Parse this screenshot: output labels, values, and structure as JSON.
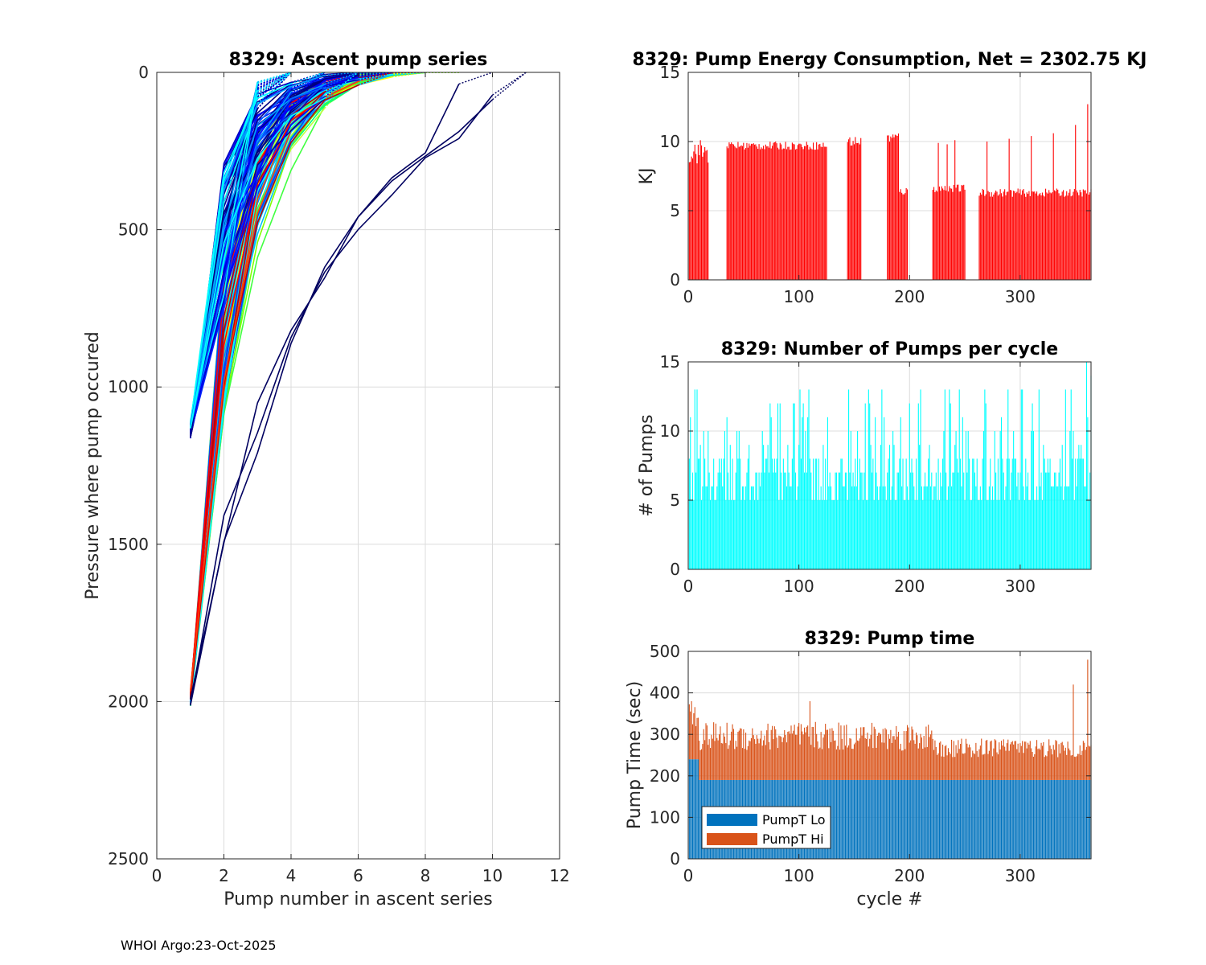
{
  "footer": "WHOI Argo:23-Oct-2025",
  "chart_data": [
    {
      "id": "ascent",
      "type": "line",
      "title": "8329: Ascent pump series",
      "xlabel": "Pump number in ascent series",
      "ylabel": "Pressure where pump occured",
      "xlim": [
        0,
        12
      ],
      "ylim": [
        0,
        2500
      ],
      "y_reversed": true,
      "grid": true,
      "xticks": [
        0,
        2,
        4,
        6,
        8,
        10,
        12
      ],
      "yticks": [
        0,
        500,
        1000,
        1500,
        2000,
        2500
      ],
      "series_groups": [
        {
          "name": "deep-2000-green",
          "count": 40,
          "start_p": 2000,
          "colors": [
            "#40ff40",
            "#80ff00",
            "#c0ff40",
            "#ffff00",
            "#00ff80"
          ],
          "len_range": [
            5,
            8
          ],
          "shape": "steep"
        },
        {
          "name": "deep-2000-blue",
          "count": 25,
          "start_p": 2000,
          "colors": [
            "#0080ff",
            "#00c0ff",
            "#0040ff",
            "#00ffff"
          ],
          "len_range": [
            4,
            7
          ],
          "shape": "steep"
        },
        {
          "name": "deep-2000-red",
          "count": 8,
          "start_p": 1980,
          "colors": [
            "#ff0000",
            "#c00000",
            "#ff4000"
          ],
          "len_range": [
            5,
            7
          ],
          "shape": "steep"
        },
        {
          "name": "park-1150-navy",
          "count": 55,
          "start_p": 1150,
          "colors": [
            "#00008f",
            "#0000c0",
            "#000080",
            "#0020ff",
            "#0000ff"
          ],
          "len_range": [
            3,
            6
          ],
          "shape": "fast"
        },
        {
          "name": "park-1150-cyan",
          "count": 15,
          "start_p": 1120,
          "colors": [
            "#0060ff",
            "#00a0ff",
            "#00ffff"
          ],
          "len_range": [
            3,
            5
          ],
          "shape": "fast"
        },
        {
          "name": "outliers",
          "count": 3,
          "start_p": 2000,
          "colors": [
            "#000060"
          ],
          "len_range": [
            9,
            10
          ],
          "shape": "long"
        }
      ]
    },
    {
      "id": "energy",
      "type": "bar",
      "title": "8329: Pump Energy Consumption,  Net = 2302.75 KJ",
      "xlabel": "",
      "ylabel": "KJ",
      "xlim": [
        0,
        364
      ],
      "ylim": [
        0,
        15
      ],
      "grid": true,
      "xticks": [
        0,
        100,
        200,
        300
      ],
      "yticks": [
        0,
        5,
        10,
        15
      ],
      "color": "#ff0000",
      "net": 2302.75,
      "segments": [
        {
          "from": 1,
          "to": 18,
          "mean": 9.3,
          "spread": 0.9
        },
        {
          "from": 35,
          "to": 125,
          "mean": 9.7,
          "spread": 0.3
        },
        {
          "from": 144,
          "to": 156,
          "mean": 10.0,
          "spread": 0.4
        },
        {
          "from": 180,
          "to": 190,
          "mean": 10.3,
          "spread": 0.4
        },
        {
          "from": 191,
          "to": 198,
          "mean": 6.4,
          "spread": 0.3
        },
        {
          "from": 221,
          "to": 250,
          "mean": 6.6,
          "spread": 0.3
        },
        {
          "from": 263,
          "to": 364,
          "mean": 6.3,
          "spread": 0.3
        }
      ],
      "spikes": [
        {
          "cycle": 226,
          "value": 9.9
        },
        {
          "cycle": 234,
          "value": 9.8
        },
        {
          "cycle": 241,
          "value": 10.1
        },
        {
          "cycle": 270,
          "value": 10.0
        },
        {
          "cycle": 290,
          "value": 10.2
        },
        {
          "cycle": 310,
          "value": 10.4
        },
        {
          "cycle": 330,
          "value": 10.6
        },
        {
          "cycle": 350,
          "value": 11.2
        },
        {
          "cycle": 361,
          "value": 12.7
        }
      ]
    },
    {
      "id": "pumps",
      "type": "bar",
      "title": "8329: Number of Pumps per cycle",
      "xlabel": "",
      "ylabel": "# of Pumps",
      "xlim": [
        0,
        364
      ],
      "ylim": [
        0,
        15
      ],
      "grid": true,
      "xticks": [
        0,
        100,
        200,
        300
      ],
      "yticks": [
        0,
        5,
        10,
        15
      ],
      "color": "#00ffff",
      "value_range": [
        5,
        13
      ],
      "max_value": 15,
      "count": 364
    },
    {
      "id": "pumptime",
      "type": "bar",
      "stacked": true,
      "title": "8329: Pump time",
      "xlabel": "cycle #",
      "ylabel": "Pump Time (sec)",
      "xlim": [
        0,
        364
      ],
      "ylim": [
        0,
        500
      ],
      "grid": true,
      "xticks": [
        0,
        100,
        200,
        300
      ],
      "yticks": [
        0,
        100,
        200,
        300,
        400,
        500
      ],
      "series": [
        {
          "name": "PumpT Lo",
          "color": "#0072bd",
          "segments": [
            {
              "from": 1,
              "to": 9,
              "value": 240
            },
            {
              "from": 10,
              "to": 364,
              "value": 190
            }
          ]
        },
        {
          "name": "PumpT Hi",
          "color": "#d95319",
          "range": [
            70,
            140
          ],
          "spikes": [
            {
              "cycle": 3,
              "value": 140
            },
            {
              "cycle": 110,
              "value": 190
            },
            {
              "cycle": 348,
              "value": 230
            },
            {
              "cycle": 361,
              "value": 290
            }
          ]
        }
      ],
      "legend": [
        "PumpT Lo",
        "PumpT Hi"
      ],
      "legend_location": "bottom-left"
    }
  ]
}
